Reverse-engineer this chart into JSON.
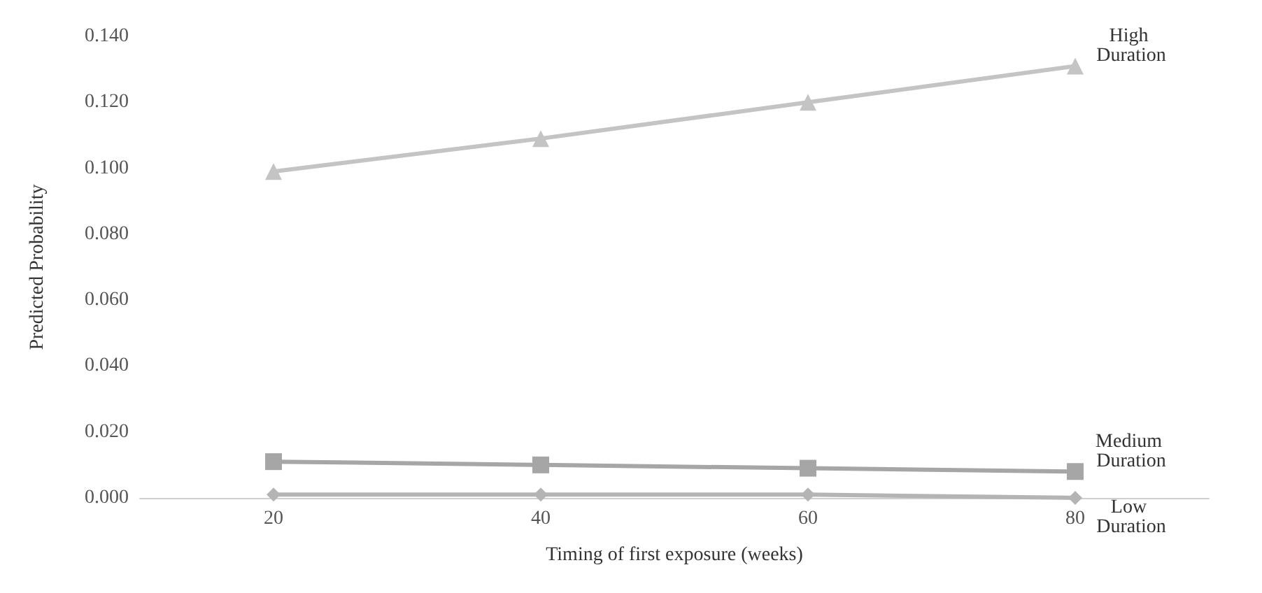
{
  "chart_data": {
    "type": "line",
    "xlabel": "Timing of first exposure (weeks)",
    "ylabel": "Predicted Probability",
    "x": [
      20,
      40,
      60,
      80
    ],
    "xlim": [
      10,
      90
    ],
    "xticks": [
      20,
      40,
      60,
      80
    ],
    "ylim": [
      0,
      0.14
    ],
    "yticks": [
      {
        "value": 0,
        "label": "0.000"
      },
      {
        "value": 0.02,
        "label": "0.020"
      },
      {
        "value": 0.04,
        "label": "0.040"
      },
      {
        "value": 0.06,
        "label": "0.060"
      },
      {
        "value": 0.08,
        "label": "0.080"
      },
      {
        "value": 0.1,
        "label": "0.100"
      },
      {
        "value": 0.12,
        "label": "0.120"
      },
      {
        "value": 0.14,
        "label": "0.140"
      }
    ],
    "grid": false,
    "legend": false,
    "line_style": "solid",
    "series": [
      {
        "name": "High Duration",
        "color": "#c4c4c4",
        "marker": "triangle",
        "values": [
          0.099,
          0.109,
          0.12,
          0.131
        ]
      },
      {
        "name": "Medium Duration",
        "color": "#a6a6a6",
        "marker": "square",
        "values": [
          0.011,
          0.01,
          0.009,
          0.008
        ]
      },
      {
        "name": "Low Duration",
        "color": "#b4b4b4",
        "marker": "diamond",
        "values": [
          0.001,
          0.001,
          0.001,
          0.0
        ]
      }
    ]
  }
}
